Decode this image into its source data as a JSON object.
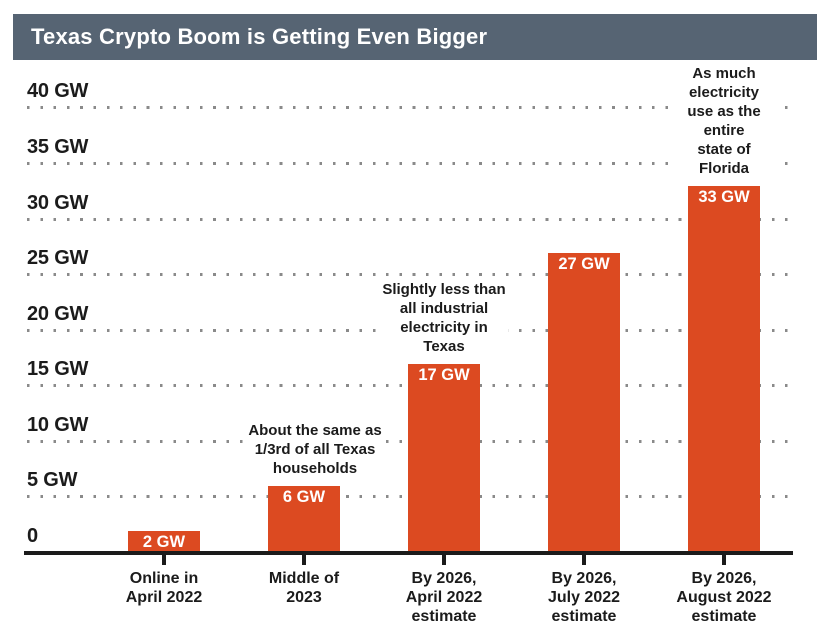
{
  "title": "Texas Crypto Boom is Getting Even Bigger",
  "colors": {
    "bar": "#DC4A21",
    "header_bg": "#566473",
    "ink": "#1B1B1B",
    "grid_dot": "#8A8A8A",
    "value_text": "#FFFFFF",
    "background": "#FFFFFF"
  },
  "chart_data": {
    "type": "bar",
    "title": "Texas Crypto Boom is Getting Even Bigger",
    "unit": "GW",
    "categories": [
      "Online in\nApril 2022",
      "Middle of\n2023",
      "By 2026,\nApril 2022\nestimate",
      "By 2026,\nJuly 2022\nestimate",
      "By 2026,\nAugust 2022\nestimate"
    ],
    "values": [
      2,
      6,
      17,
      27,
      33
    ],
    "bar_labels": [
      "2 GW",
      "6 GW",
      "17 GW",
      "27 GW",
      "33 GW"
    ],
    "annotations": [
      null,
      "About the same as\n1/3rd of all Texas\nhouseholds",
      "Slightly less than\nall industrial\nelectricity in\nTexas",
      null,
      "As much electricity\nuse as the entire\nstate of Florida"
    ],
    "y_ticks": [
      {
        "gw": 40,
        "label": "40 GW"
      },
      {
        "gw": 35,
        "label": "35 GW"
      },
      {
        "gw": 30,
        "label": "30 GW"
      },
      {
        "gw": 25,
        "label": "25 GW"
      },
      {
        "gw": 20,
        "label": "20 GW"
      },
      {
        "gw": 15,
        "label": "15 GW"
      },
      {
        "gw": 10,
        "label": "10 GW"
      },
      {
        "gw": 5,
        "label": "5 GW"
      },
      {
        "gw": 0,
        "label": "0"
      }
    ],
    "ylim": [
      0,
      40
    ],
    "xlabel": "",
    "ylabel": "",
    "grid": "dotted horizontal gridlines",
    "legend": "none",
    "value_label_position": "inside-top, white"
  }
}
